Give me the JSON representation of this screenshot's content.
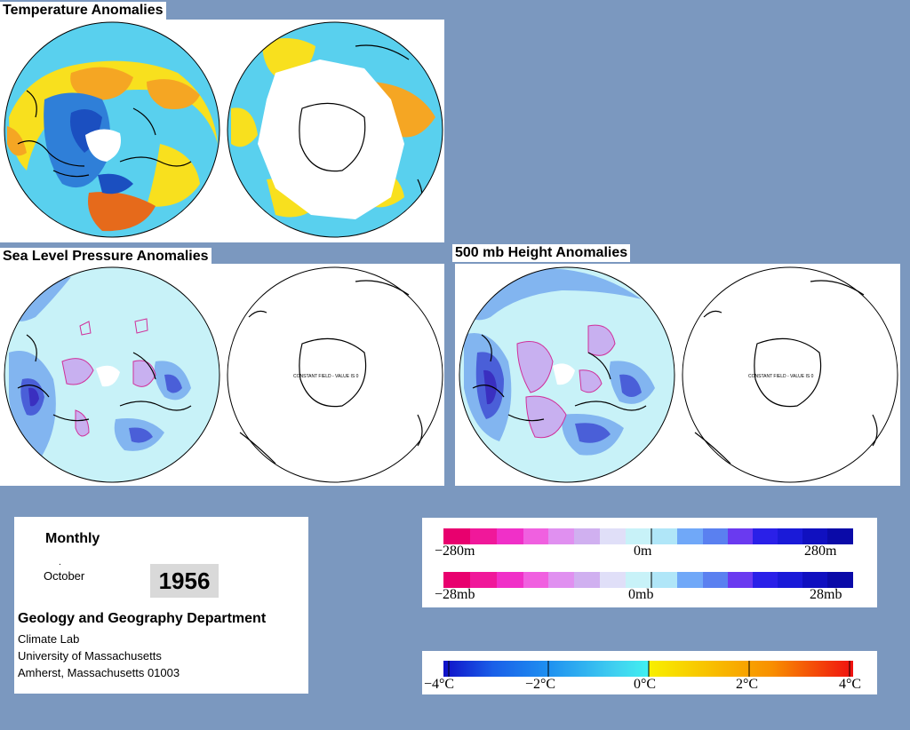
{
  "sections": {
    "temperature": {
      "title": "Temperature Anomalies"
    },
    "slp": {
      "title": "Sea Level Pressure Anomalies",
      "constant_label": "CONSTANT FIELD - VALUE IS 0"
    },
    "height": {
      "title": "500 mb Height Anomalies",
      "constant_label": "CONSTANT FIELD - VALUE IS 0"
    }
  },
  "info": {
    "period": "Monthly",
    "dot": ".",
    "month": "October",
    "year": "1956",
    "department": "Geology and Geography Department",
    "lines": [
      "Climate Lab",
      "University of Massachusetts",
      "Amherst, Massachusetts 01003"
    ]
  },
  "legends": {
    "height": {
      "ticks": [
        "−280m",
        "0m",
        "280m"
      ]
    },
    "pressure": {
      "ticks": [
        "−28mb",
        "0mb",
        "28mb"
      ]
    },
    "temperature": {
      "ticks": [
        "−4°C",
        "−2°C",
        "0°C",
        "2°C",
        "4°C"
      ]
    }
  },
  "colors": {
    "page_bg": "#7b98bf",
    "anom_warm": "#f5a623",
    "anom_hot": "#e66a1b",
    "anom_yellow": "#f8e01e",
    "anom_light_cyan": "#59d0ee",
    "anom_blue": "#2f7fd8",
    "anom_dark_blue": "#1b4fc0",
    "field_light": "#c8f2f8",
    "field_blue": "#82b5f0",
    "field_purple": "#c8b0f0"
  }
}
